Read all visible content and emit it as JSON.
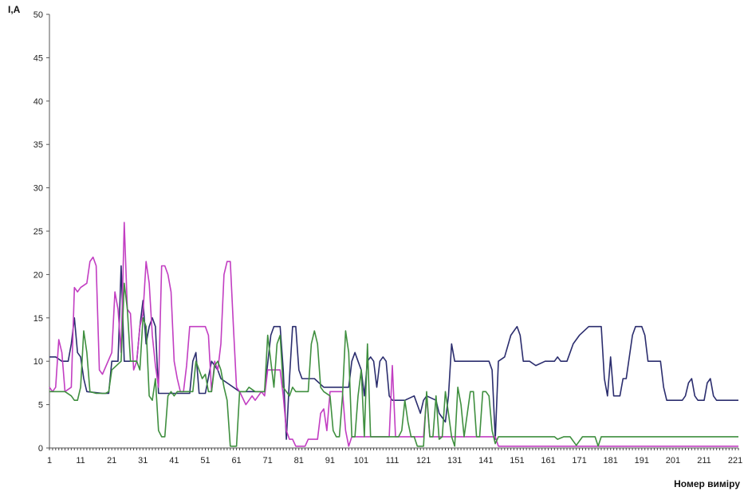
{
  "chart_data": {
    "type": "line",
    "ylabel": "I,A",
    "xlabel": "Номер виміру",
    "ylim": [
      0,
      50
    ],
    "yticks": [
      "0",
      "5",
      "10",
      "15",
      "20",
      "25",
      "30",
      "35",
      "40",
      "45",
      "50"
    ],
    "xlim": [
      1,
      222
    ],
    "xticks": [
      "1",
      "11",
      "21",
      "31",
      "41",
      "51",
      "61",
      "71",
      "81",
      "91",
      "101",
      "111",
      "121",
      "131",
      "141",
      "151",
      "161",
      "171",
      "181",
      "191",
      "201",
      "211",
      "221"
    ],
    "grid": false,
    "legend": "none",
    "series": [
      {
        "color": "#2b2d6e",
        "points": [
          [
            1,
            10.5
          ],
          [
            3,
            10.5
          ],
          [
            5,
            10
          ],
          [
            7,
            10
          ],
          [
            8,
            12
          ],
          [
            9,
            15
          ],
          [
            10,
            11
          ],
          [
            11,
            10.5
          ],
          [
            12,
            8
          ],
          [
            13,
            6.5
          ],
          [
            18,
            6.3
          ],
          [
            20,
            6.3
          ],
          [
            21,
            10
          ],
          [
            23,
            10
          ],
          [
            24,
            21
          ],
          [
            25,
            10
          ],
          [
            29,
            10
          ],
          [
            30,
            14
          ],
          [
            31,
            17
          ],
          [
            32,
            12
          ],
          [
            33,
            14
          ],
          [
            34,
            15
          ],
          [
            35,
            14
          ],
          [
            36,
            6.3
          ],
          [
            46,
            6.3
          ],
          [
            47,
            10
          ],
          [
            48,
            11
          ],
          [
            49,
            6.3
          ],
          [
            51,
            6.3
          ],
          [
            53,
            10
          ],
          [
            55,
            9
          ],
          [
            56,
            8
          ],
          [
            58,
            7.5
          ],
          [
            62,
            6.5
          ],
          [
            70,
            6.5
          ],
          [
            72,
            13
          ],
          [
            73,
            14
          ],
          [
            75,
            14
          ],
          [
            76,
            9
          ],
          [
            77,
            1
          ],
          [
            78,
            8
          ],
          [
            79,
            14
          ],
          [
            80,
            14
          ],
          [
            81,
            9
          ],
          [
            82,
            8
          ],
          [
            86,
            8
          ],
          [
            89,
            7
          ],
          [
            92,
            7
          ],
          [
            97,
            7
          ],
          [
            98,
            10
          ],
          [
            99,
            11
          ],
          [
            100,
            10
          ],
          [
            101,
            9
          ],
          [
            102,
            6
          ],
          [
            103,
            10
          ],
          [
            104,
            10.5
          ],
          [
            105,
            10
          ],
          [
            106,
            7
          ],
          [
            107,
            10
          ],
          [
            108,
            10.5
          ],
          [
            109,
            10
          ],
          [
            110,
            6
          ],
          [
            111,
            5.5
          ],
          [
            115,
            5.5
          ],
          [
            118,
            6
          ],
          [
            120,
            4
          ],
          [
            121,
            5.5
          ],
          [
            122,
            6
          ],
          [
            125,
            5.5
          ],
          [
            126,
            4
          ],
          [
            128,
            3
          ],
          [
            129,
            6
          ],
          [
            130,
            12
          ],
          [
            131,
            10
          ],
          [
            138,
            10
          ],
          [
            142,
            10
          ],
          [
            143,
            9
          ],
          [
            144,
            1
          ],
          [
            145,
            10
          ],
          [
            147,
            10.5
          ],
          [
            149,
            13
          ],
          [
            151,
            14
          ],
          [
            152,
            13
          ],
          [
            153,
            10
          ],
          [
            155,
            10
          ],
          [
            157,
            9.5
          ],
          [
            160,
            10
          ],
          [
            163,
            10
          ],
          [
            164,
            10.5
          ],
          [
            165,
            10
          ],
          [
            167,
            10
          ],
          [
            168,
            11
          ],
          [
            169,
            12
          ],
          [
            171,
            13
          ],
          [
            174,
            14
          ],
          [
            178,
            14
          ],
          [
            179,
            8
          ],
          [
            180,
            6
          ],
          [
            181,
            10.5
          ],
          [
            182,
            6
          ],
          [
            184,
            6
          ],
          [
            185,
            8
          ],
          [
            186,
            8
          ],
          [
            188,
            13
          ],
          [
            189,
            14
          ],
          [
            191,
            14
          ],
          [
            192,
            13
          ],
          [
            193,
            10
          ],
          [
            197,
            10
          ],
          [
            198,
            7
          ],
          [
            199,
            5.5
          ],
          [
            204,
            5.5
          ],
          [
            205,
            6
          ],
          [
            206,
            7.5
          ],
          [
            207,
            8
          ],
          [
            208,
            6
          ],
          [
            209,
            5.5
          ],
          [
            211,
            5.5
          ],
          [
            212,
            7.5
          ],
          [
            213,
            8
          ],
          [
            214,
            6
          ],
          [
            215,
            5.5
          ],
          [
            222,
            5.5
          ]
        ]
      },
      {
        "color": "#c23ec2",
        "points": [
          [
            1,
            7
          ],
          [
            2,
            6.5
          ],
          [
            3,
            7
          ],
          [
            4,
            12.5
          ],
          [
            5,
            11
          ],
          [
            6,
            6.5
          ],
          [
            8,
            7
          ],
          [
            9,
            18.5
          ],
          [
            10,
            18
          ],
          [
            11,
            18.5
          ],
          [
            13,
            19
          ],
          [
            14,
            21.5
          ],
          [
            15,
            22
          ],
          [
            16,
            21
          ],
          [
            17,
            9
          ],
          [
            18,
            8.5
          ],
          [
            21,
            11
          ],
          [
            22,
            18
          ],
          [
            23,
            16
          ],
          [
            24,
            11
          ],
          [
            25,
            26
          ],
          [
            26,
            16
          ],
          [
            27,
            15.5
          ],
          [
            28,
            9
          ],
          [
            29,
            10
          ],
          [
            30,
            14
          ],
          [
            31,
            15.5
          ],
          [
            32,
            21.5
          ],
          [
            33,
            19
          ],
          [
            34,
            13
          ],
          [
            35,
            9.5
          ],
          [
            36,
            7
          ],
          [
            37,
            21
          ],
          [
            38,
            21
          ],
          [
            39,
            20
          ],
          [
            40,
            18
          ],
          [
            41,
            10
          ],
          [
            42,
            8
          ],
          [
            43,
            6.5
          ],
          [
            44,
            6.5
          ],
          [
            45,
            9.5
          ],
          [
            46,
            14
          ],
          [
            51,
            14
          ],
          [
            52,
            13
          ],
          [
            53,
            6.5
          ],
          [
            54,
            10
          ],
          [
            55,
            9
          ],
          [
            56,
            12
          ],
          [
            57,
            20
          ],
          [
            58,
            21.5
          ],
          [
            59,
            21.5
          ],
          [
            60,
            14
          ],
          [
            61,
            7
          ],
          [
            62,
            6.5
          ],
          [
            64,
            5
          ],
          [
            65,
            5.5
          ],
          [
            66,
            6
          ],
          [
            67,
            5.5
          ],
          [
            69,
            6.5
          ],
          [
            70,
            6
          ],
          [
            71,
            9
          ],
          [
            75,
            9
          ],
          [
            76,
            6
          ],
          [
            77,
            2
          ],
          [
            78,
            1
          ],
          [
            79,
            1
          ],
          [
            80,
            0.2
          ],
          [
            83,
            0.2
          ],
          [
            84,
            1
          ],
          [
            87,
            1
          ],
          [
            88,
            4
          ],
          [
            89,
            4.5
          ],
          [
            90,
            2
          ],
          [
            91,
            6.5
          ],
          [
            95,
            6.5
          ],
          [
            96,
            2
          ],
          [
            97,
            0.2
          ],
          [
            98,
            1.3
          ],
          [
            110,
            1.3
          ],
          [
            111,
            9.5
          ],
          [
            112,
            1.3
          ],
          [
            121,
            1.3
          ],
          [
            122,
            6
          ],
          [
            123,
            1.3
          ],
          [
            144,
            1.3
          ],
          [
            145,
            0.2
          ],
          [
            222,
            0.2
          ]
        ]
      },
      {
        "color": "#3f8f3f",
        "points": [
          [
            1,
            6.5
          ],
          [
            3,
            6.5
          ],
          [
            6,
            6.5
          ],
          [
            8,
            6
          ],
          [
            9,
            5.5
          ],
          [
            10,
            5.5
          ],
          [
            11,
            7
          ],
          [
            12,
            13.5
          ],
          [
            13,
            11
          ],
          [
            14,
            6.5
          ],
          [
            16,
            6.3
          ],
          [
            19,
            6.3
          ],
          [
            20,
            6.5
          ],
          [
            21,
            9
          ],
          [
            24,
            10
          ],
          [
            25,
            19
          ],
          [
            26,
            16
          ],
          [
            27,
            10
          ],
          [
            29,
            10
          ],
          [
            30,
            9
          ],
          [
            31,
            15
          ],
          [
            32,
            14
          ],
          [
            33,
            6
          ],
          [
            34,
            5.5
          ],
          [
            35,
            8
          ],
          [
            36,
            2
          ],
          [
            37,
            1.3
          ],
          [
            38,
            1.3
          ],
          [
            39,
            6
          ],
          [
            40,
            6.5
          ],
          [
            41,
            6
          ],
          [
            42,
            6.5
          ],
          [
            47,
            6.5
          ],
          [
            48,
            10
          ],
          [
            49,
            9
          ],
          [
            50,
            8
          ],
          [
            51,
            8.5
          ],
          [
            52,
            6.5
          ],
          [
            53,
            6.5
          ],
          [
            54,
            9.5
          ],
          [
            55,
            10
          ],
          [
            56,
            9
          ],
          [
            57,
            7
          ],
          [
            58,
            5.5
          ],
          [
            59,
            0.2
          ],
          [
            61,
            0.2
          ],
          [
            62,
            6.5
          ],
          [
            64,
            6.5
          ],
          [
            65,
            7
          ],
          [
            67,
            6.5
          ],
          [
            70,
            6.5
          ],
          [
            71,
            13
          ],
          [
            72,
            10
          ],
          [
            73,
            7
          ],
          [
            74,
            12
          ],
          [
            75,
            13
          ],
          [
            76,
            7
          ],
          [
            77,
            6.5
          ],
          [
            78,
            6
          ],
          [
            79,
            7
          ],
          [
            80,
            6.5
          ],
          [
            82,
            6.5
          ],
          [
            84,
            6.5
          ],
          [
            85,
            12
          ],
          [
            86,
            13.5
          ],
          [
            87,
            12
          ],
          [
            88,
            7
          ],
          [
            89,
            6.5
          ],
          [
            91,
            6
          ],
          [
            92,
            2
          ],
          [
            93,
            1.3
          ],
          [
            94,
            1.3
          ],
          [
            95,
            6
          ],
          [
            96,
            13.5
          ],
          [
            97,
            11
          ],
          [
            98,
            1.3
          ],
          [
            99,
            1.3
          ],
          [
            100,
            6
          ],
          [
            101,
            9
          ],
          [
            102,
            1.3
          ],
          [
            103,
            12
          ],
          [
            104,
            1.3
          ],
          [
            108,
            1.3
          ],
          [
            113,
            1.3
          ],
          [
            114,
            2
          ],
          [
            115,
            5.5
          ],
          [
            116,
            3
          ],
          [
            117,
            1.3
          ],
          [
            118,
            1.3
          ],
          [
            119,
            0.2
          ],
          [
            121,
            0.2
          ],
          [
            122,
            6.5
          ],
          [
            123,
            1.3
          ],
          [
            124,
            1.3
          ],
          [
            125,
            6
          ],
          [
            126,
            1
          ],
          [
            127,
            1.3
          ],
          [
            128,
            6.5
          ],
          [
            129,
            4
          ],
          [
            130,
            1.3
          ],
          [
            131,
            0.2
          ],
          [
            132,
            7
          ],
          [
            133,
            5
          ],
          [
            134,
            1.3
          ],
          [
            136,
            6.5
          ],
          [
            137,
            6.5
          ],
          [
            138,
            1.3
          ],
          [
            139,
            1.3
          ],
          [
            140,
            6.5
          ],
          [
            141,
            6.5
          ],
          [
            142,
            6
          ],
          [
            143,
            2
          ],
          [
            144,
            0.5
          ],
          [
            145,
            1.3
          ],
          [
            163,
            1.3
          ],
          [
            164,
            1
          ],
          [
            166,
            1.3
          ],
          [
            168,
            1.3
          ],
          [
            170,
            0.3
          ],
          [
            172,
            1.3
          ],
          [
            176,
            1.3
          ],
          [
            177,
            0.2
          ],
          [
            178,
            1.3
          ],
          [
            222,
            1.3
          ]
        ]
      }
    ]
  }
}
